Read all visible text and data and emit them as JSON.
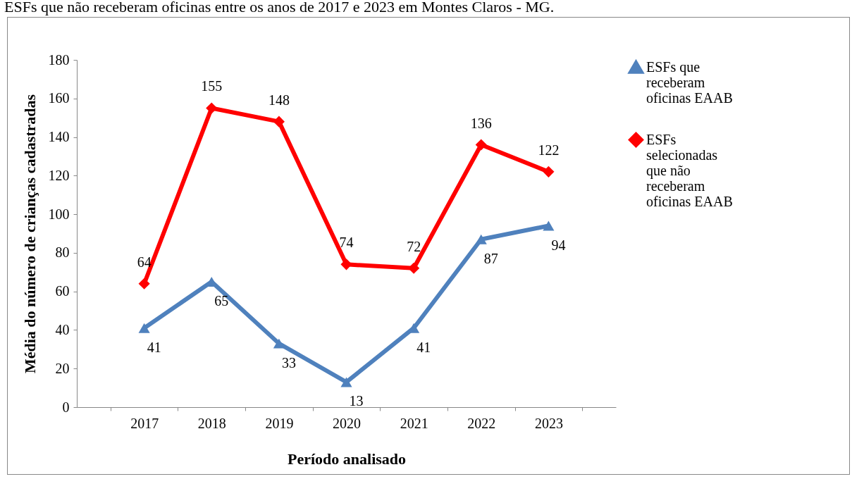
{
  "chart_data": {
    "type": "line",
    "title": "ESFs que não receberam oficinas entre os anos de 2017 e 2023 em Montes Claros - MG.",
    "xlabel": "Período analisado",
    "ylabel": "Média do número de crianças cadastradas",
    "categories": [
      "2017",
      "2018",
      "2019",
      "2020",
      "2021",
      "2022",
      "2023"
    ],
    "series": [
      {
        "name": "ESFs que receberam oficinas EAAB",
        "color": "#4f81bd",
        "marker": "triangle",
        "values": [
          41,
          65,
          33,
          13,
          41,
          87,
          94
        ]
      },
      {
        "name": "ESFs selecionadas que não receberam oficinas EAAB",
        "color": "#ff0000",
        "marker": "diamond",
        "values": [
          64,
          155,
          148,
          74,
          72,
          136,
          122
        ]
      }
    ],
    "ylim": [
      0,
      180
    ],
    "yticks": [
      0,
      20,
      40,
      60,
      80,
      100,
      120,
      140,
      160,
      180
    ],
    "grid": false,
    "legend": "right",
    "data_labels": true,
    "line_style": "solid"
  }
}
